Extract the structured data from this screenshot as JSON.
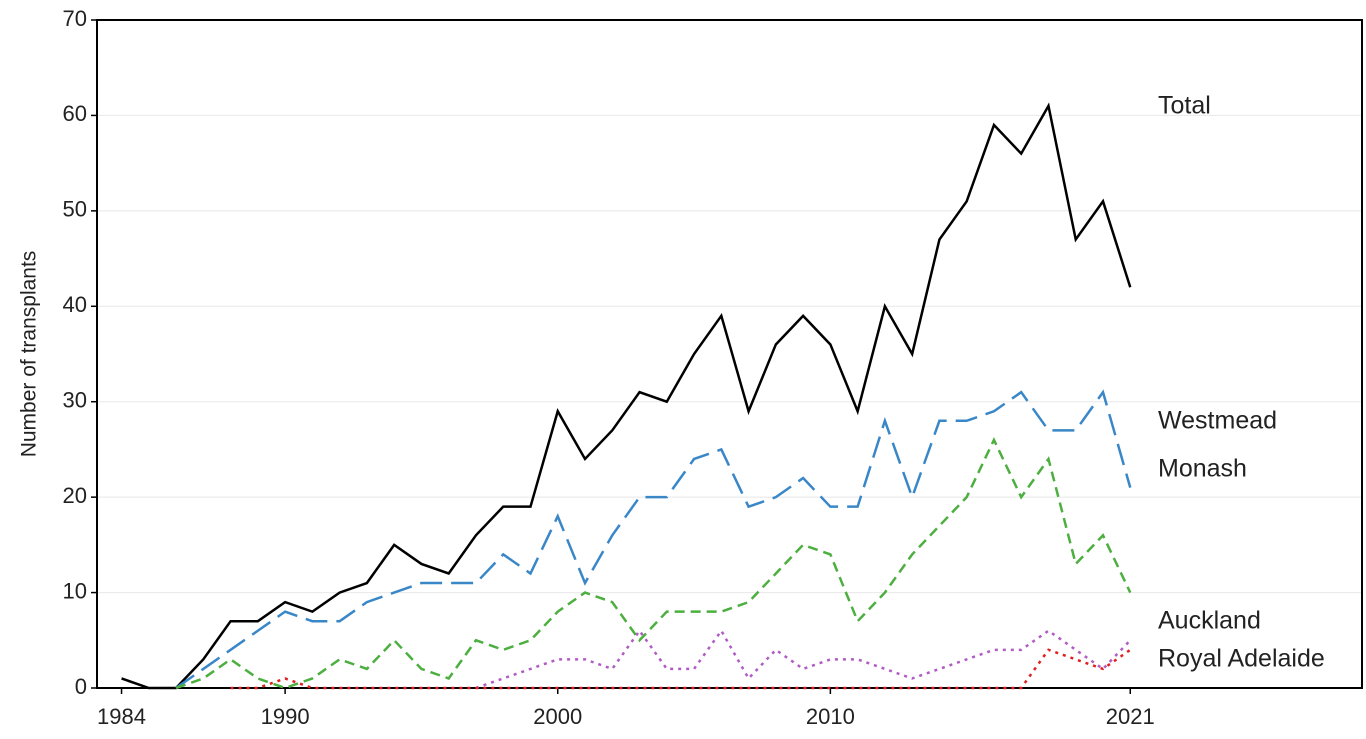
{
  "chart_data": {
    "type": "line",
    "y_label": "Number of transplants",
    "x": [
      1984,
      1985,
      1986,
      1987,
      1988,
      1989,
      1990,
      1991,
      1992,
      1993,
      1994,
      1995,
      1996,
      1997,
      1998,
      1999,
      2000,
      2001,
      2002,
      2003,
      2004,
      2005,
      2006,
      2007,
      2008,
      2009,
      2010,
      2011,
      2012,
      2013,
      2014,
      2015,
      2016,
      2017,
      2018,
      2019,
      2020,
      2021
    ],
    "series": [
      {
        "name": "Total",
        "color": "#000000",
        "line_style": "solid",
        "values": [
          1,
          0,
          0,
          3,
          7,
          7,
          9,
          8,
          10,
          11,
          15,
          13,
          12,
          16,
          19,
          19,
          29,
          24,
          27,
          31,
          30,
          35,
          39,
          29,
          36,
          39,
          36,
          29,
          40,
          35,
          47,
          51,
          59,
          56,
          61,
          47,
          51,
          42
        ]
      },
      {
        "name": "Westmead",
        "color": "#3a87c8",
        "line_style": "long-dash",
        "values": [
          null,
          null,
          0,
          2,
          4,
          6,
          8,
          7,
          7,
          9,
          10,
          11,
          11,
          11,
          14,
          12,
          18,
          11,
          16,
          20,
          20,
          24,
          25,
          19,
          20,
          22,
          19,
          19,
          28,
          20,
          28,
          28,
          29,
          31,
          27,
          27,
          31,
          21
        ]
      },
      {
        "name": "Monash",
        "color": "#4caf3f",
        "line_style": "dashed",
        "values": [
          null,
          null,
          0,
          1,
          3,
          1,
          0,
          1,
          3,
          2,
          5,
          2,
          1,
          5,
          4,
          5,
          8,
          10,
          9,
          5,
          8,
          8,
          8,
          9,
          12,
          15,
          14,
          7,
          10,
          14,
          17,
          20,
          26,
          20,
          24,
          13,
          16,
          10
        ]
      },
      {
        "name": "Auckland",
        "color": "#b05cc4",
        "line_style": "dotted",
        "values": [
          null,
          null,
          null,
          null,
          null,
          null,
          null,
          null,
          null,
          null,
          null,
          null,
          null,
          0,
          1,
          2,
          3,
          3,
          2,
          6,
          2,
          2,
          6,
          1,
          4,
          2,
          3,
          3,
          2,
          1,
          2,
          3,
          4,
          4,
          6,
          4,
          2,
          5
        ]
      },
      {
        "name": "Royal Adelaide",
        "color": "#e02020",
        "line_style": "dotted",
        "values": [
          null,
          null,
          null,
          null,
          0,
          0,
          1,
          0,
          0,
          0,
          0,
          0,
          0,
          0,
          0,
          0,
          0,
          0,
          0,
          0,
          0,
          0,
          0,
          0,
          0,
          0,
          0,
          0,
          0,
          0,
          0,
          0,
          0,
          0,
          4,
          3,
          2,
          4
        ]
      }
    ],
    "xlim": [
      1983.1,
      2029.5
    ],
    "xticks": [
      1984,
      1990,
      2000,
      2010,
      2021
    ],
    "ylim": [
      0,
      70
    ],
    "yticks": [
      0,
      10,
      20,
      30,
      40,
      50,
      60,
      70
    ],
    "grid": true
  }
}
